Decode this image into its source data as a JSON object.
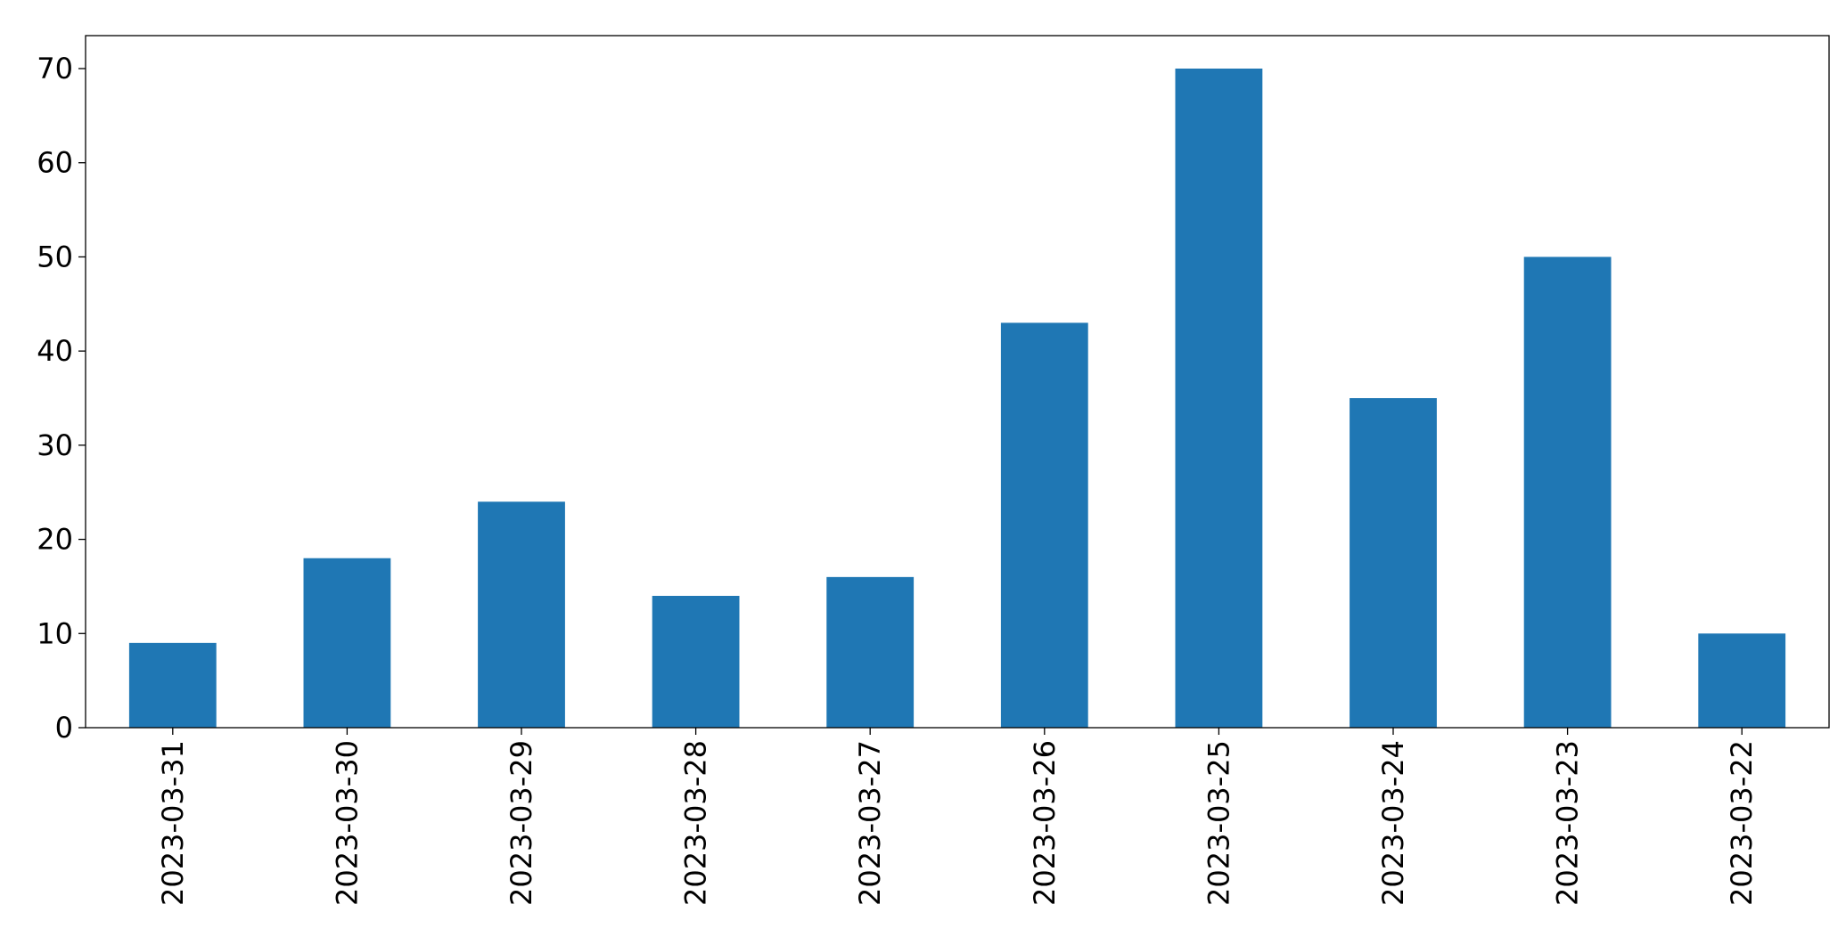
{
  "chart_data": {
    "type": "bar",
    "categories": [
      "2023-03-31",
      "2023-03-30",
      "2023-03-29",
      "2023-03-28",
      "2023-03-27",
      "2023-03-26",
      "2023-03-25",
      "2023-03-24",
      "2023-03-23",
      "2023-03-22"
    ],
    "values": [
      9,
      18,
      24,
      14,
      16,
      43,
      70,
      35,
      50,
      10
    ],
    "color": "#1f77b4",
    "ylim": [
      0,
      73.5
    ],
    "yticks": [
      0,
      10,
      20,
      30,
      40,
      50,
      60,
      70
    ],
    "grid": false
  }
}
